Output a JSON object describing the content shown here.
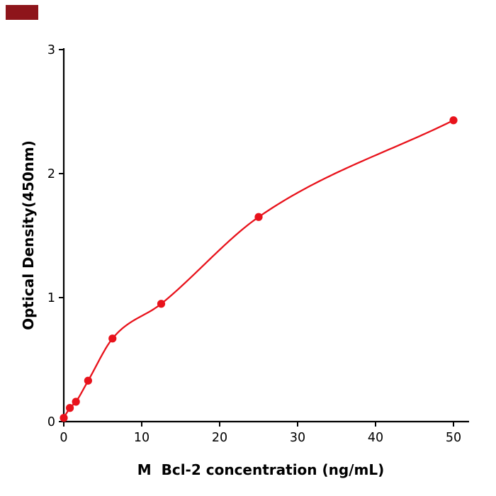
{
  "page": {
    "background": "#ffffff",
    "corner_tag_color": "#8e151b"
  },
  "chart_data": {
    "type": "scatter",
    "title": "",
    "xlabel": "M  Bcl-2 concentration (ng/mL)",
    "ylabel": "Optical Density(450nm)",
    "x": [
      0,
      0.78,
      1.56,
      3.125,
      6.25,
      12.5,
      25,
      50
    ],
    "y": [
      0.03,
      0.11,
      0.16,
      0.33,
      0.67,
      0.95,
      1.65,
      2.43
    ],
    "xlim": [
      0,
      52
    ],
    "ylim": [
      0,
      3
    ],
    "xticks": [
      0,
      10,
      20,
      30,
      40,
      50
    ],
    "yticks": [
      0,
      1,
      2,
      3
    ],
    "point_color": "#e8121b",
    "line_color": "#e8121b",
    "axis_color": "#000000",
    "grid": false,
    "legend": "none",
    "fit": "smooth saturating curve through points (ELISA standard curve)"
  }
}
